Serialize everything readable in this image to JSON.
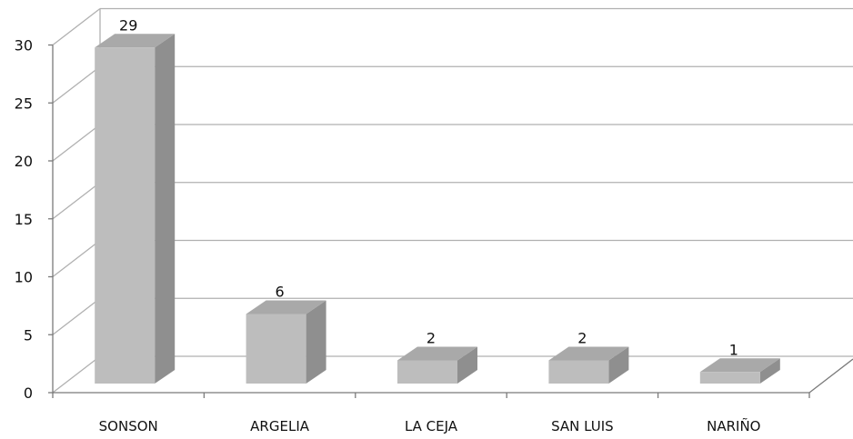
{
  "chart_data": {
    "type": "bar",
    "title": "",
    "xlabel": "",
    "ylabel": "",
    "categories": [
      "SONSON",
      "ARGELIA",
      "LA CEJA",
      "SAN LUIS",
      "NARIÑO"
    ],
    "values": [
      29,
      6,
      2,
      2,
      1
    ],
    "data_labels": [
      "29",
      "6",
      "2",
      "2",
      "1"
    ],
    "ylim": [
      0,
      30
    ],
    "yticks": [
      "0",
      "5",
      "10",
      "15",
      "20",
      "25",
      "30"
    ],
    "grid": true,
    "style": "3d-column",
    "bar_color": "#bdbdbd",
    "bar_top_color": "#a9a9a9",
    "bar_side_color": "#8f8f8f",
    "grid_color": "#b0b0b0"
  }
}
